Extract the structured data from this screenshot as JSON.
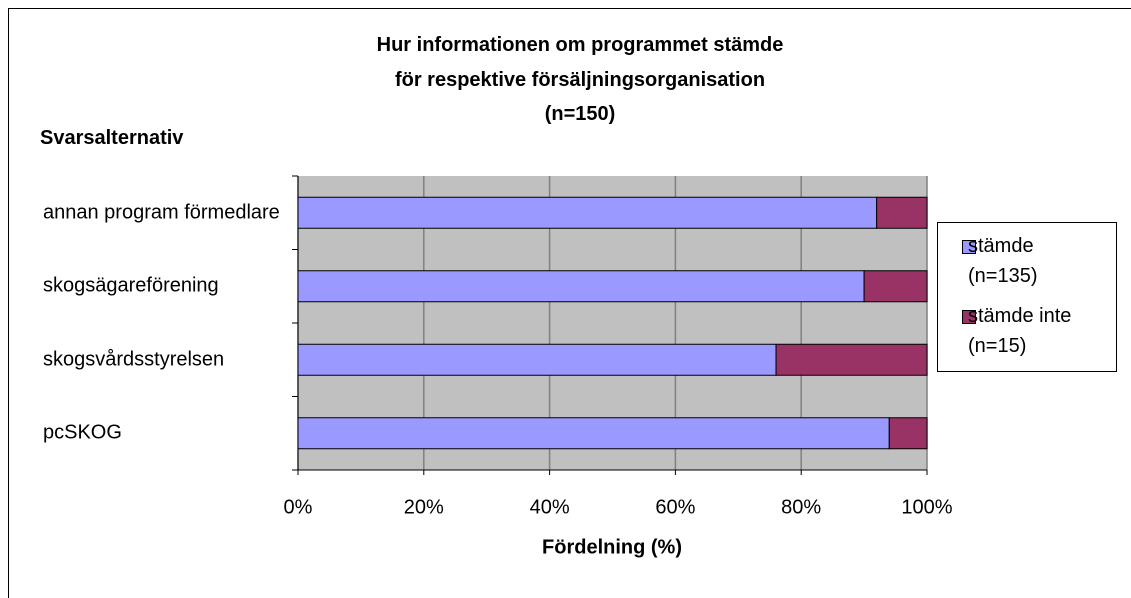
{
  "chart_data": {
    "type": "stacked_bar_horizontal",
    "title": [
      "Hur informationen om programmet stämde",
      "för respektive försäljningsorganisation",
      "(n=150)"
    ],
    "y_label": "Svarsalternativ",
    "x_label": "Fördelning (%)",
    "categories": [
      "annan program förmedlare",
      "skogsägareförening",
      "skogsvårdsstyrelsen",
      "pcSKOG"
    ],
    "series": [
      {
        "name": "stämde (n=135)",
        "color": "#9999ff",
        "values": [
          92,
          90,
          76,
          94
        ]
      },
      {
        "name": "stämde inte (n=15)",
        "color": "#993366",
        "values": [
          8,
          10,
          24,
          6
        ]
      }
    ],
    "xlim": [
      0,
      100
    ],
    "xticks": [
      {
        "value": 0,
        "label": "0%"
      },
      {
        "value": 20,
        "label": "20%"
      },
      {
        "value": 40,
        "label": "40%"
      },
      {
        "value": 60,
        "label": "60%"
      },
      {
        "value": 80,
        "label": "80%"
      },
      {
        "value": 100,
        "label": "100%"
      }
    ],
    "grid": true,
    "legend": "right"
  }
}
